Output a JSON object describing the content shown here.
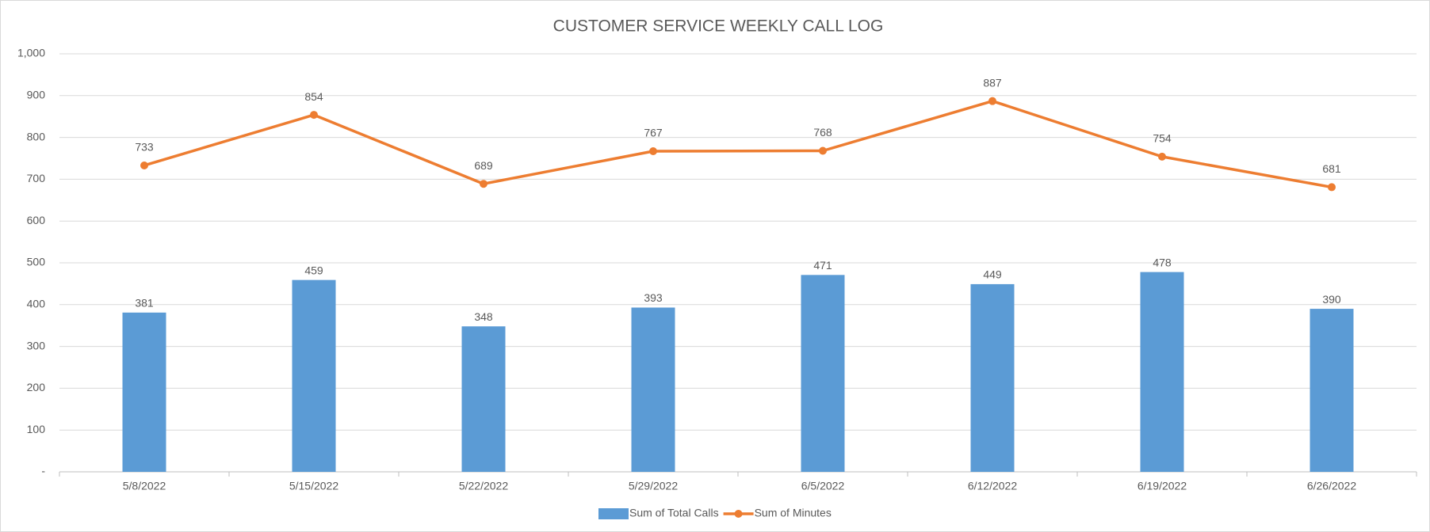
{
  "chart_data": {
    "type": "bar-line",
    "title": "CUSTOMER SERVICE WEEKLY CALL LOG",
    "categories": [
      "5/8/2022",
      "5/15/2022",
      "5/22/2022",
      "5/29/2022",
      "6/5/2022",
      "6/12/2022",
      "6/19/2022",
      "6/26/2022"
    ],
    "series": [
      {
        "name": "Sum of Total Calls",
        "type": "bar",
        "color": "#5b9bd5",
        "values": [
          381,
          459,
          348,
          393,
          471,
          449,
          478,
          390
        ]
      },
      {
        "name": "Sum of Minutes",
        "type": "line",
        "color": "#ed7d31",
        "values": [
          733,
          854,
          689,
          767,
          768,
          887,
          754,
          681
        ]
      }
    ],
    "ylim": [
      0,
      1000
    ],
    "yticks": [
      {
        "value": 0,
        "label": "-"
      },
      100,
      200,
      300,
      400,
      500,
      600,
      700,
      800,
      900,
      {
        "value": 1000,
        "label": "1,000"
      }
    ],
    "grid": true,
    "legend": "bottom"
  }
}
